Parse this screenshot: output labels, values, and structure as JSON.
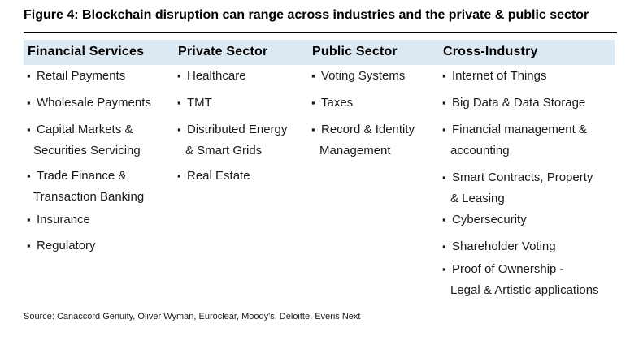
{
  "figure": {
    "title": "Figure 4: Blockchain disruption can range across industries and the private & public sector",
    "bullet": "▪"
  },
  "columns": [
    {
      "header": "Financial Services",
      "items": [
        {
          "line1": "Retail Payments"
        },
        {
          "line1": "Wholesale Payments"
        },
        {
          "line1": "Capital Markets &",
          "line2": "Securities Servicing"
        },
        {
          "line1": "Trade Finance &",
          "line2": "Transaction Banking"
        },
        {
          "line1": "Insurance"
        },
        {
          "line1": "Regulatory"
        }
      ]
    },
    {
      "header": "Private Sector",
      "items": [
        {
          "line1": "Healthcare"
        },
        {
          "line1": "TMT"
        },
        {
          "line1": "Distributed Energy",
          "line2": "& Smart Grids"
        },
        {
          "line1": "Real Estate"
        }
      ]
    },
    {
      "header": "Public Sector",
      "items": [
        {
          "line1": "Voting Systems"
        },
        {
          "line1": "Taxes"
        },
        {
          "line1": "Record & Identity",
          "line2": "Management"
        }
      ]
    },
    {
      "header": "Cross-Industry",
      "items": [
        {
          "line1": "Internet of Things"
        },
        {
          "line1": "Big Data & Data Storage"
        },
        {
          "line1": "Financial management &",
          "line2": "accounting"
        },
        {
          "line1": "Smart Contracts, Property",
          "line2": "& Leasing"
        },
        {
          "line1": "Cybersecurity"
        },
        {
          "line1": "Shareholder Voting"
        },
        {
          "line1": "Proof of Ownership -",
          "line2": "Legal & Artistic applications"
        }
      ]
    }
  ],
  "source": "Source: Canaccord Genuity, Oliver Wyman, Euroclear, Moody's, Deloitte, Everis Next",
  "colors": {
    "header_band": "#dce9f2",
    "text": "#1a1a1a"
  }
}
